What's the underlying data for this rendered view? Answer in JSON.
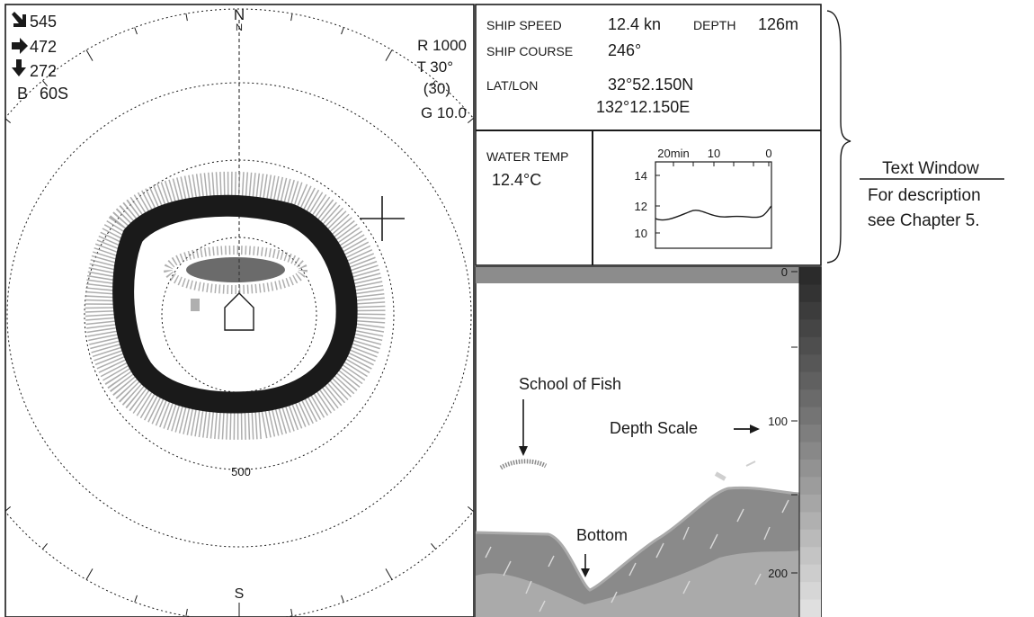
{
  "sonar": {
    "north_label": "N",
    "north_sub_label": "N",
    "south_label": "S",
    "range_ring_label": "500",
    "readout_left": [
      {
        "arrow": "down-right-arrow-icon",
        "text": "545"
      },
      {
        "arrow": "right-arrow-icon",
        "text": "472"
      },
      {
        "arrow": "down-arrow-icon",
        "text": "272"
      }
    ],
    "bearing_label": "B",
    "bearing_value": "60S",
    "readout_right": [
      "R 1000",
      "T 30°",
      "(30)",
      "G 10.0"
    ]
  },
  "text_window": {
    "ship_speed_label": "SHIP SPEED",
    "ship_speed_value": "12.4 kn",
    "depth_label": "DEPTH",
    "depth_value": "126m",
    "ship_course_label": "SHIP COURSE",
    "ship_course_value": "246°",
    "latlon_label": "LAT/LON",
    "lat_value": "32°52.150N",
    "lon_value": "132°12.150E",
    "water_temp_label": "WATER TEMP",
    "water_temp_value": "12.4°C"
  },
  "temp_graph": {
    "x_ticks": [
      "20min",
      "10",
      "0"
    ],
    "y_ticks": [
      "14",
      "12",
      "10"
    ]
  },
  "sounder": {
    "depth_ticks": [
      "0",
      "100",
      "200"
    ],
    "school_label": "School of Fish",
    "depth_scale_label": "Depth Scale",
    "bottom_label": "Bottom",
    "colors": [
      "#2b2b2b",
      "#333333",
      "#3c3c3c",
      "#454545",
      "#4e4e4e",
      "#575757",
      "#606060",
      "#6a6a6a",
      "#747474",
      "#7e7e7e",
      "#888888",
      "#929292",
      "#9c9c9c",
      "#a6a6a6",
      "#b0b0b0",
      "#bababa",
      "#c4c4c4",
      "#cdcdcd",
      "#d6d6d6",
      "#dfdfdf"
    ]
  },
  "callout": {
    "title": "Text Window",
    "line1": "For description",
    "line2": "see Chapter 5."
  }
}
